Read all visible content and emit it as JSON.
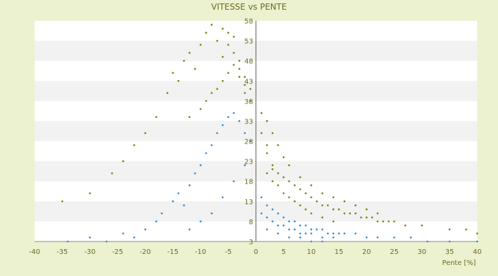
{
  "chart_data": {
    "type": "scatter",
    "title": "VITESSE vs PENTE",
    "xlabel": "Pente [%]",
    "ylabel": "",
    "xlim": [
      -40,
      40
    ],
    "ylim": [
      3,
      58
    ],
    "x_ticks": [
      -40,
      -35,
      -30,
      -25,
      -20,
      -15,
      -10,
      -5,
      0,
      5,
      10,
      15,
      20,
      25,
      30,
      35,
      40
    ],
    "x_tick_labels": [
      "-40",
      "-35",
      "-30",
      "-25",
      "-20",
      "-15",
      "-10",
      "-5",
      "0",
      "5",
      "10",
      "15",
      "20",
      "25",
      "30",
      "35",
      "40"
    ],
    "y_ticks": [
      3,
      8,
      13,
      18,
      23,
      28,
      33,
      38,
      43,
      48,
      53,
      58
    ],
    "y_tick_labels": [
      "3",
      "8",
      "13",
      "18",
      "23",
      "28",
      "33",
      "38",
      "43",
      "48",
      "53",
      "58"
    ],
    "grid": "horizontal bands",
    "legend": "none",
    "colors": {
      "series_olive": "#7d8a16",
      "series_blue": "#3b8fd9",
      "band": "#f2f2f2",
      "axis": "#555555",
      "text": "#6b6b1e"
    },
    "series": [
      {
        "color": "#7d8a16",
        "x": [
          -35,
          -30,
          -26,
          -24,
          -22,
          -20,
          -18,
          -16,
          -15,
          -14,
          -13,
          -12,
          -11,
          -10,
          -9,
          -8,
          -7,
          -6,
          -6,
          -5,
          -5,
          -4,
          -4,
          -3,
          -3,
          -2,
          -2,
          -1,
          -12,
          -10,
          -9,
          -8,
          -7,
          -6,
          -5,
          -4,
          -3,
          -2,
          -1,
          1,
          1,
          2,
          2,
          3,
          3,
          4,
          5,
          6,
          7,
          8,
          9,
          10,
          11,
          12,
          13,
          14,
          15,
          16,
          17,
          18,
          19,
          20,
          21,
          22,
          23,
          24,
          25,
          27,
          30,
          35,
          38,
          40,
          2,
          3,
          4,
          5,
          6,
          8,
          10,
          12,
          14,
          16,
          18,
          20,
          22,
          2,
          3,
          4,
          5,
          6,
          7,
          8,
          9,
          10,
          12,
          14
        ],
        "y": [
          13,
          15,
          20,
          23,
          27,
          30,
          34,
          40,
          45,
          43,
          48,
          50,
          46,
          52,
          55,
          57,
          53,
          56,
          49,
          55,
          52,
          54,
          50,
          48,
          44,
          42,
          40,
          38,
          34,
          36,
          38,
          40,
          41,
          43,
          45,
          47,
          46,
          44,
          41,
          35,
          30,
          27,
          25,
          22,
          21,
          20,
          19,
          18,
          17,
          16,
          15,
          14,
          13,
          12,
          12,
          11,
          11,
          10,
          10,
          10,
          9,
          9,
          9,
          8,
          8,
          8,
          8,
          7,
          7,
          6,
          6,
          5,
          33,
          30,
          27,
          24,
          22,
          19,
          17,
          15,
          14,
          13,
          12,
          11,
          10,
          20,
          18,
          17,
          15,
          14,
          13,
          12,
          11,
          10,
          9,
          8
        ]
      },
      {
        "color": "#3b8fd9",
        "x": [
          -34,
          -30,
          -27,
          -24,
          -22,
          -20,
          -18,
          -17,
          -15,
          -14,
          -13,
          -12,
          -11,
          -10,
          -9,
          -8,
          -7,
          -6,
          -5,
          -4,
          -3,
          -2,
          -1,
          -12,
          -10,
          -8,
          -6,
          -4,
          -2,
          1,
          2,
          3,
          4,
          5,
          6,
          7,
          8,
          9,
          10,
          11,
          12,
          13,
          14,
          15,
          16,
          18,
          20,
          22,
          25,
          28,
          31,
          35,
          40,
          1,
          2,
          3,
          4,
          5,
          6,
          7,
          8,
          9,
          10,
          12,
          14,
          2,
          4,
          6,
          8,
          10,
          12
        ],
        "y": [
          3,
          4,
          3,
          5,
          4,
          6,
          8,
          10,
          13,
          15,
          12,
          17,
          20,
          22,
          25,
          27,
          30,
          32,
          34,
          35,
          33,
          30,
          28,
          6,
          8,
          10,
          14,
          18,
          22,
          14,
          12,
          11,
          10,
          9,
          8,
          8,
          7,
          7,
          6,
          6,
          6,
          5,
          5,
          5,
          5,
          5,
          4,
          4,
          4,
          4,
          3,
          3,
          3,
          10,
          9,
          8,
          7,
          7,
          6,
          6,
          5,
          5,
          5,
          4,
          4,
          6,
          5,
          4,
          4,
          3,
          3
        ]
      }
    ]
  }
}
